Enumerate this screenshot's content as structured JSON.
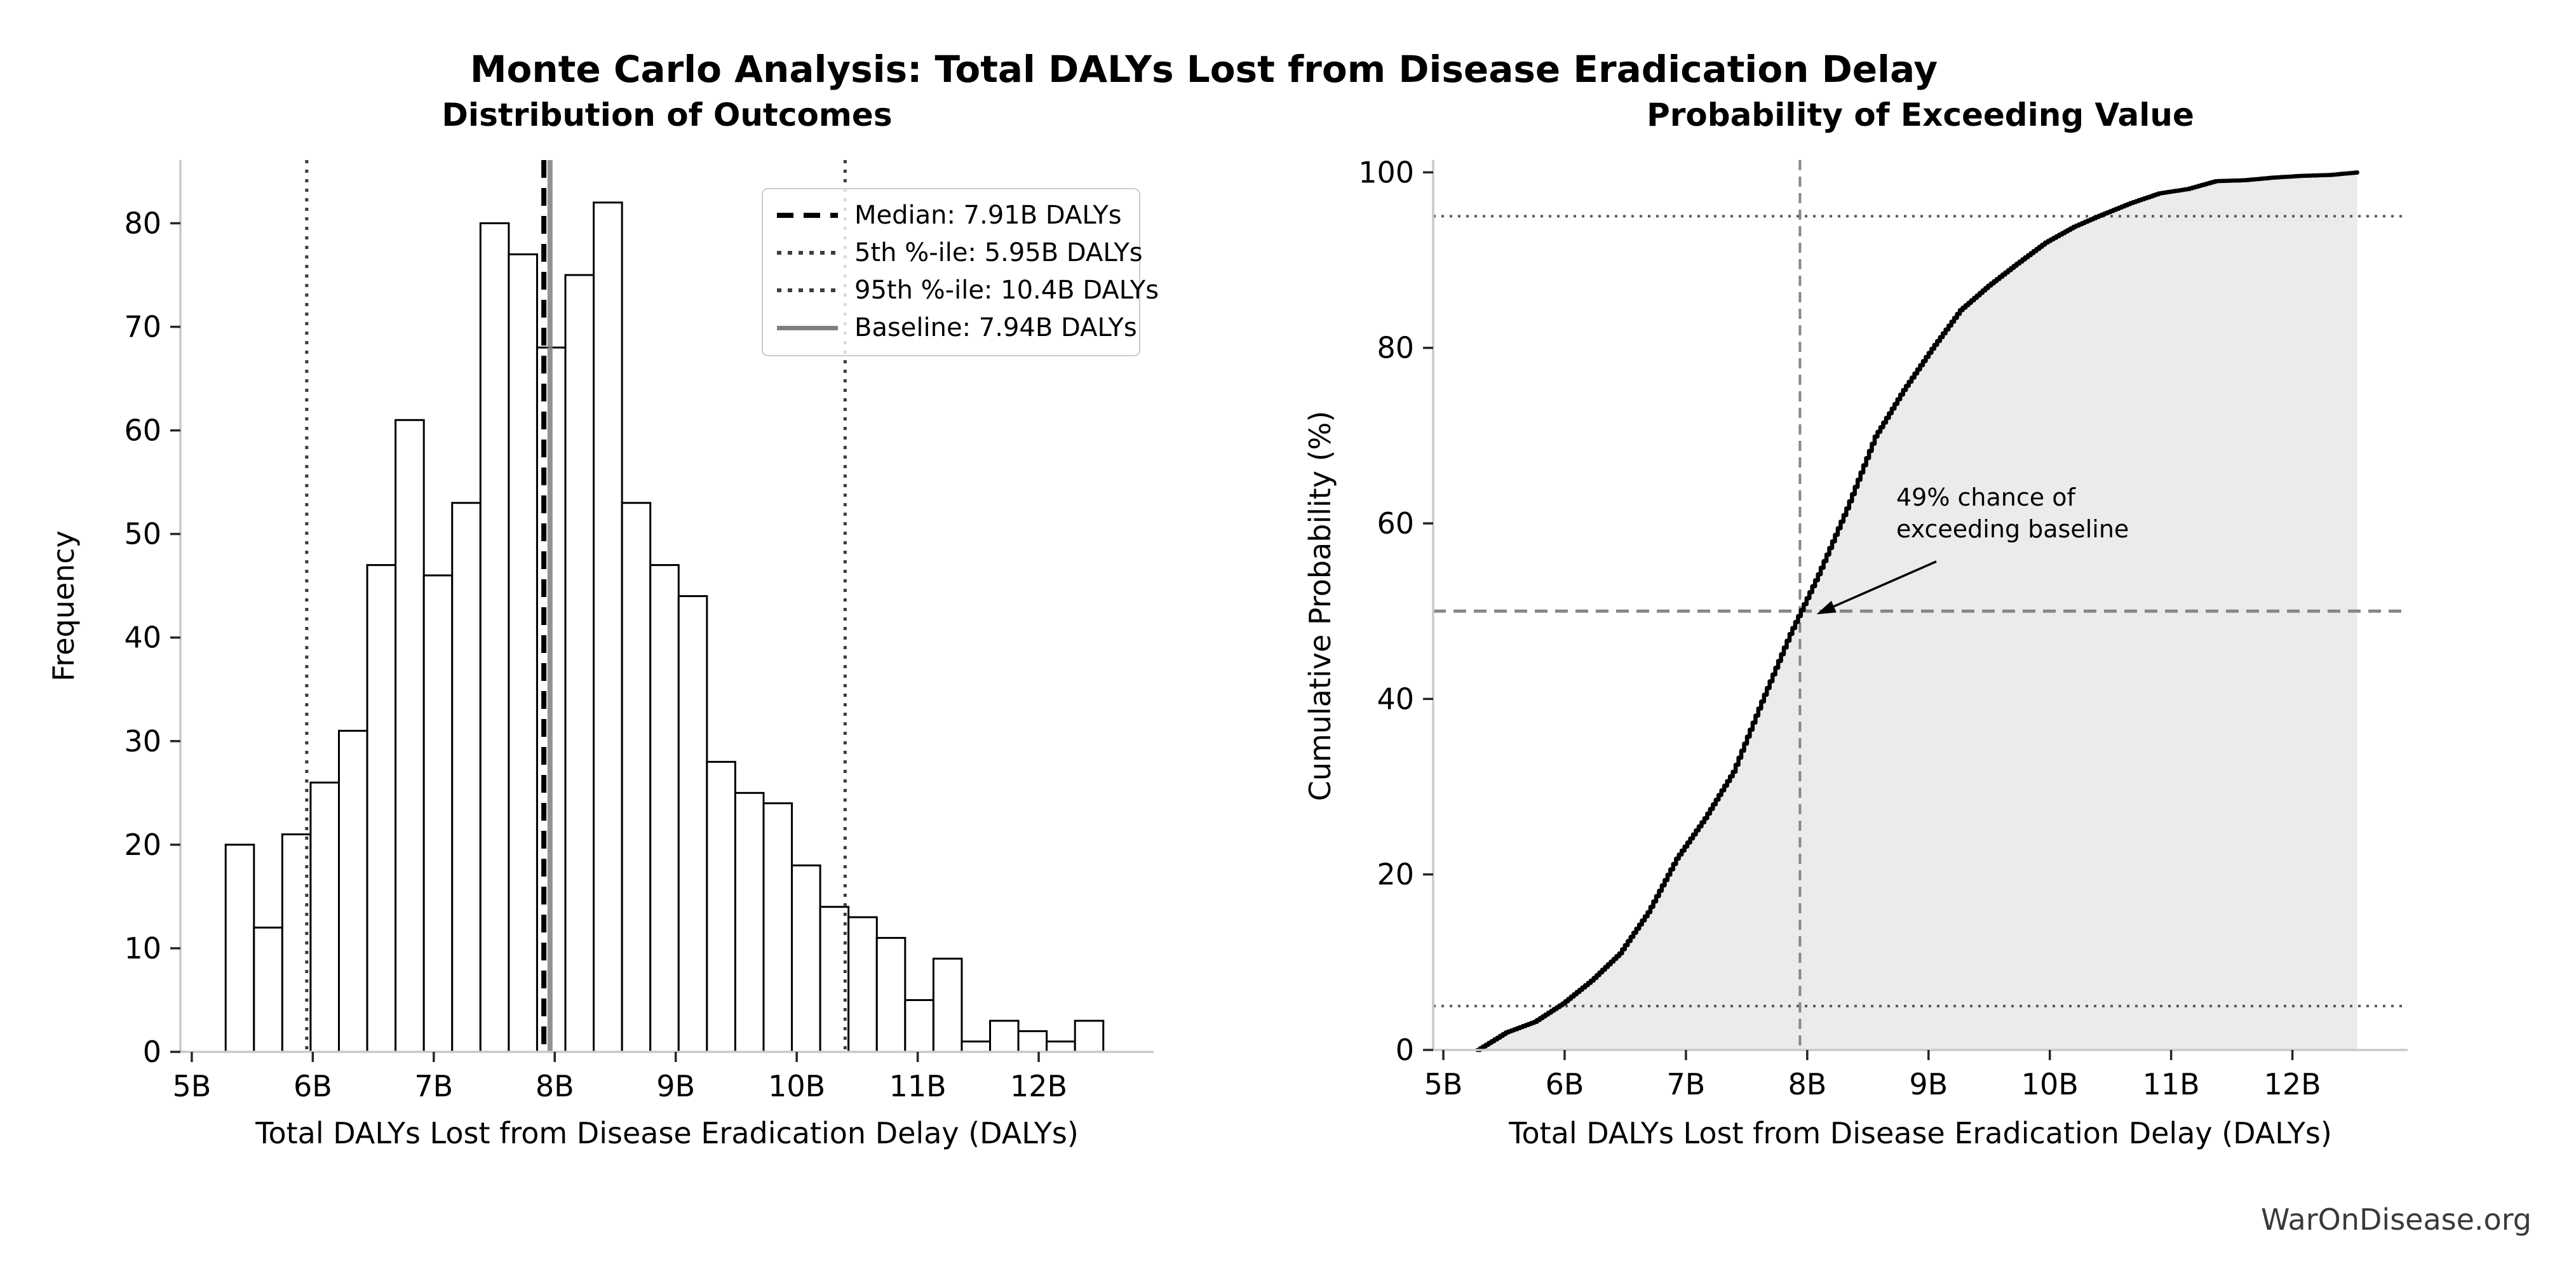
{
  "page": {
    "suptitle": "Monte Carlo Analysis: Total DALYs Lost from Disease Eradication Delay",
    "watermark": "WarOnDisease.org",
    "background_color": "#ffffff"
  },
  "left_chart": {
    "title": "Distribution of Outcomes",
    "xlabel": "Total DALYs Lost from Disease Eradication Delay (DALYs)",
    "ylabel": "Frequency",
    "xtick_values": [
      5,
      6,
      7,
      8,
      9,
      10,
      11,
      12
    ],
    "xtick_labels": [
      "5B",
      "6B",
      "7B",
      "8B",
      "9B",
      "10B",
      "11B",
      "12B"
    ],
    "ytick_values": [
      0,
      10,
      20,
      30,
      40,
      50,
      60,
      70,
      80
    ],
    "legend": [
      {
        "label": "Median: 7.91B DALYs",
        "style": "dashed-black"
      },
      {
        "label": "5th %-ile: 5.95B DALYs",
        "style": "dotted-gray"
      },
      {
        "label": "95th %-ile: 10.4B DALYs",
        "style": "dotted-gray"
      },
      {
        "label": "Baseline: 7.94B DALYs",
        "style": "solid-gray"
      }
    ]
  },
  "right_chart": {
    "title": "Probability of Exceeding Value",
    "xlabel": "Total DALYs Lost from Disease Eradication Delay (DALYs)",
    "ylabel": "Cumulative Probability (%)",
    "xtick_values": [
      5,
      6,
      7,
      8,
      9,
      10,
      11,
      12
    ],
    "xtick_labels": [
      "5B",
      "6B",
      "7B",
      "8B",
      "9B",
      "10B",
      "11B",
      "12B"
    ],
    "ytick_values": [
      0,
      20,
      40,
      60,
      80,
      100
    ],
    "annotation": {
      "line1": "49% chance of",
      "line2": "exceeding baseline"
    }
  },
  "colors": {
    "bar_fill": "#ffffff",
    "bar_edge": "#000000",
    "median_line": "#000000",
    "percentile_line": "#3d3d3d",
    "baseline_line": "#7f7f7f",
    "cdf_line": "#000000",
    "cdf_fill": "#e0e0e0",
    "ref_dash_gray": "#868686",
    "ref_dot_gray": "#5a5a5a",
    "spine": "#c9c9c9",
    "tick": "#262626",
    "watermark": "#3a3a3a"
  },
  "chart_data": [
    {
      "type": "bar",
      "title": "Distribution of Outcomes",
      "xlabel": "Total DALYs Lost from Disease Eradication Delay (DALYs)",
      "ylabel": "Frequency",
      "bin_start_billions": 5.28,
      "bin_width_billions": 0.234,
      "counts": [
        20,
        12,
        21,
        26,
        31,
        47,
        61,
        46,
        53,
        80,
        77,
        68,
        75,
        82,
        53,
        47,
        44,
        28,
        25,
        24,
        18,
        14,
        13,
        11,
        5,
        9,
        1,
        3,
        2,
        1,
        3
      ],
      "n_samples": 1000,
      "xlim": [
        4.906,
        12.95
      ],
      "ylim": [
        0,
        86.1
      ],
      "ref_lines": {
        "median": 7.91,
        "p5": 5.95,
        "p95": 10.4,
        "baseline": 7.94
      },
      "legend_position": "upper right",
      "grid": false
    },
    {
      "type": "line",
      "title": "Probability of Exceeding Value",
      "xlabel": "Total DALYs Lost from Disease Eradication Delay (DALYs)",
      "ylabel": "Cumulative Probability (%)",
      "x": [
        5.28,
        5.514,
        5.748,
        5.982,
        6.216,
        6.45,
        6.684,
        6.918,
        7.152,
        7.386,
        7.62,
        7.854,
        8.088,
        8.322,
        8.556,
        8.79,
        9.024,
        9.258,
        9.492,
        9.726,
        9.96,
        10.194,
        10.428,
        10.662,
        10.896,
        11.13,
        11.364,
        11.598,
        11.832,
        12.066,
        12.3,
        12.534
      ],
      "y": [
        0,
        2.0,
        3.2,
        5.3,
        7.9,
        11.0,
        15.7,
        21.8,
        26.4,
        31.7,
        39.7,
        47.4,
        54.2,
        61.7,
        69.9,
        75.2,
        79.9,
        84.3,
        87.1,
        89.6,
        92.0,
        93.8,
        95.2,
        96.5,
        97.6,
        98.1,
        99.0,
        99.1,
        99.4,
        99.6,
        99.7,
        100
      ],
      "xlim": [
        4.916,
        12.95
      ],
      "ylim": [
        0,
        101.4
      ],
      "hlines": {
        "p95": 95,
        "p50": 50,
        "p5": 5
      },
      "vline_baseline": 7.94,
      "fill_under_curve": true,
      "annotation_point": {
        "x": 7.94,
        "y": 50
      },
      "grid": false
    }
  ]
}
